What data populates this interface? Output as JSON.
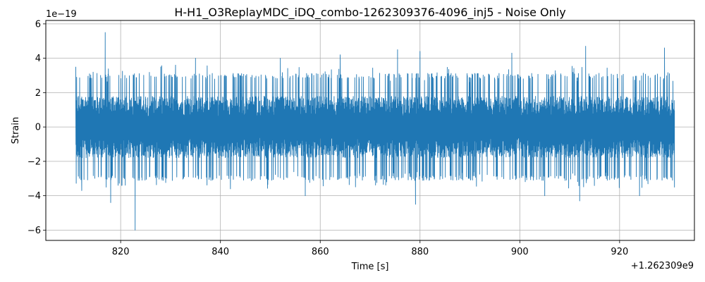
{
  "chart_data": {
    "type": "line",
    "title": "H-H1_O3ReplayMDC_iDQ_combo-1262309376-4096_inj5 - Noise Only",
    "xlabel": "Time [s]",
    "ylabel": "Strain",
    "x_offset_label": "+1.262309e9",
    "y_scale_label": "1e−19",
    "xlim": [
      805,
      935
    ],
    "ylim": [
      -6.6,
      6.2
    ],
    "x_ticks": [
      820,
      840,
      860,
      880,
      900,
      920
    ],
    "x_tick_labels": [
      "820",
      "840",
      "860",
      "880",
      "900",
      "920"
    ],
    "y_ticks": [
      -6,
      -4,
      -2,
      0,
      2,
      4,
      6
    ],
    "y_tick_labels": [
      "−6",
      "−4",
      "−2",
      "0",
      "2",
      "4",
      "6"
    ],
    "grid": true,
    "series": [
      {
        "color": "#1f77b4",
        "x_range": [
          811,
          931
        ],
        "typical_envelope": [
          -2.0,
          2.2
        ],
        "peaks": [
          {
            "x": 811.0,
            "y": 3.5
          },
          {
            "x": 812.2,
            "y": -3.7
          },
          {
            "x": 816.9,
            "y": 5.5
          },
          {
            "x": 817.1,
            "y": -3.5
          },
          {
            "x": 818.0,
            "y": -4.4
          },
          {
            "x": 822.9,
            "y": -6.0
          },
          {
            "x": 822.6,
            "y": 3.0
          },
          {
            "x": 831.0,
            "y": 3.6
          },
          {
            "x": 835.0,
            "y": 4.0
          },
          {
            "x": 842.0,
            "y": -3.6
          },
          {
            "x": 852.0,
            "y": 4.0
          },
          {
            "x": 864.0,
            "y": 4.2
          },
          {
            "x": 857.0,
            "y": -4.0
          },
          {
            "x": 875.5,
            "y": 4.5
          },
          {
            "x": 879.1,
            "y": -4.5
          },
          {
            "x": 880.0,
            "y": 4.4
          },
          {
            "x": 898.4,
            "y": 4.3
          },
          {
            "x": 905.0,
            "y": -4.0
          },
          {
            "x": 912.0,
            "y": -4.3
          },
          {
            "x": 913.2,
            "y": 4.7
          },
          {
            "x": 924.0,
            "y": -4.0
          },
          {
            "x": 929.0,
            "y": 4.6
          },
          {
            "x": 931.0,
            "y": -3.5
          }
        ]
      }
    ]
  }
}
